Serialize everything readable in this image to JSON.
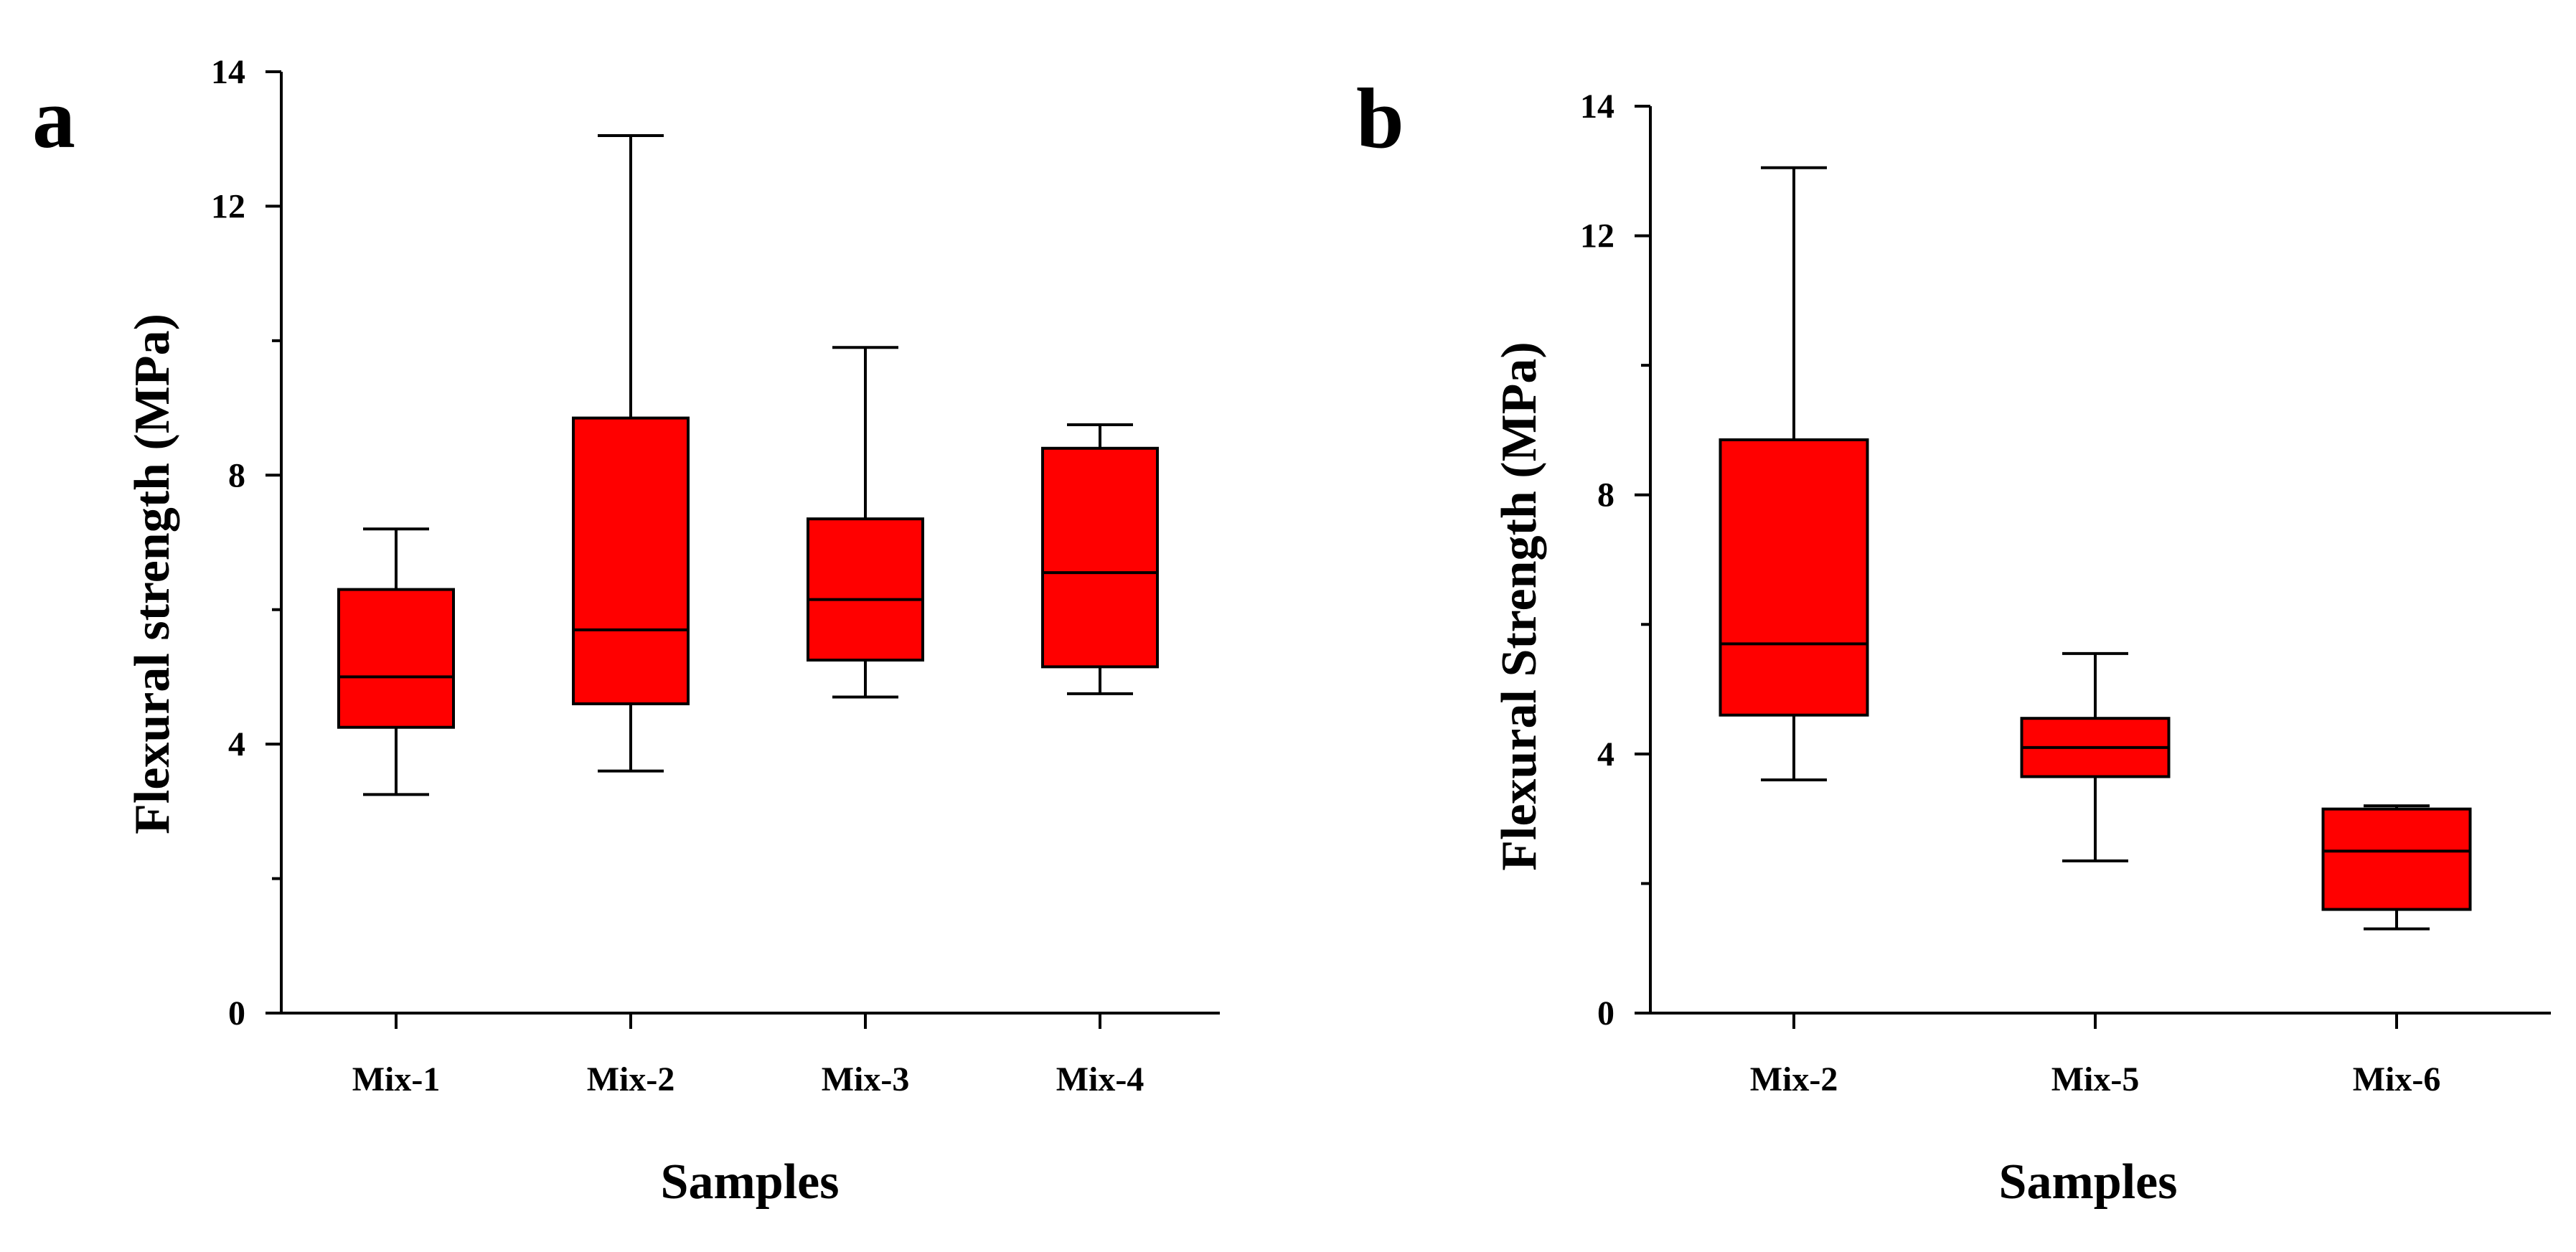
{
  "colors": {
    "box_fill": "#ff0000",
    "stroke": "#000000",
    "background": "#ffffff"
  },
  "chart_data": [
    {
      "panel": "a",
      "type": "boxplot",
      "xlabel": "Samples",
      "ylabel": "Flexural strength (MPa)",
      "ylim": [
        0,
        14
      ],
      "yticks": [
        0,
        4,
        8,
        12,
        14
      ],
      "categories": [
        "Mix-1",
        "Mix-2",
        "Mix-3",
        "Mix-4"
      ],
      "boxes": [
        {
          "name": "Mix-1",
          "min": 3.25,
          "q1": 4.25,
          "median": 5.0,
          "q3": 6.3,
          "max": 7.2
        },
        {
          "name": "Mix-2",
          "min": 3.6,
          "q1": 4.6,
          "median": 5.7,
          "q3": 8.85,
          "max": 13.05
        },
        {
          "name": "Mix-3",
          "min": 4.7,
          "q1": 5.25,
          "median": 6.15,
          "q3": 7.35,
          "max": 9.9
        },
        {
          "name": "Mix-4",
          "min": 4.75,
          "q1": 5.15,
          "median": 6.55,
          "q3": 8.4,
          "max": 8.75
        }
      ]
    },
    {
      "panel": "b",
      "type": "boxplot",
      "xlabel": "Samples",
      "ylabel": "Flexural Strength (MPa)",
      "ylim": [
        0,
        14
      ],
      "yticks": [
        0,
        4,
        8,
        12,
        14
      ],
      "categories": [
        "Mix-2",
        "Mix-5",
        "Mix-6"
      ],
      "boxes": [
        {
          "name": "Mix-2",
          "min": 3.6,
          "q1": 4.6,
          "median": 5.7,
          "q3": 8.85,
          "max": 13.05
        },
        {
          "name": "Mix-5",
          "min": 2.35,
          "q1": 3.65,
          "median": 4.1,
          "q3": 4.55,
          "max": 5.55
        },
        {
          "name": "Mix-6",
          "min": 1.3,
          "q1": 1.6,
          "median": 2.5,
          "q3": 3.15,
          "max": 3.2
        }
      ]
    }
  ]
}
